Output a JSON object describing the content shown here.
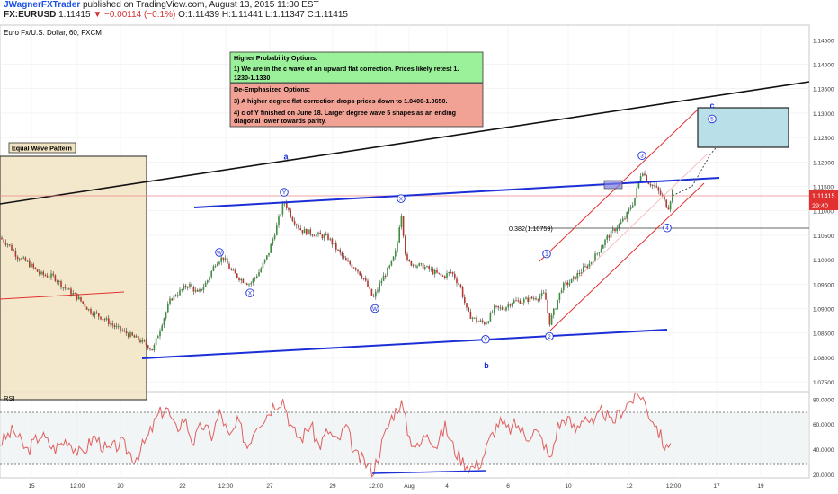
{
  "publisher": {
    "author": "JWagnerFXTrader",
    "published_text": " published on TradingView.com, August 13, 2015 11:30 EST"
  },
  "ticker": {
    "symbol": "FX:EURUSD",
    "price": "1.11415",
    "change_text": "▼ −0.00114 (−0.1%)",
    "ohlc_text": "O:1.11439 H:1.11441 L:1.11347 C:1.11415"
  },
  "chart_data": [
    {
      "type": "candlestick",
      "title": "Euro Fx/U.S. Dollar, 60, FXCM",
      "y_range": [
        1.073,
        1.148
      ],
      "y_ticks": [
        "1.14500",
        "1.14000",
        "1.13500",
        "1.13000",
        "1.12500",
        "1.12000",
        "1.11500",
        "1.11000",
        "1.10500",
        "1.10000",
        "1.09500",
        "1.09000",
        "1.08500",
        "1.08000",
        "1.07500"
      ],
      "x_tick_labels": [
        "15",
        "12:00",
        "20",
        "22",
        "12:00",
        "27",
        "29",
        "12:00",
        "Aug",
        "4",
        "6",
        "10",
        "12",
        "12:00",
        "17",
        "19"
      ],
      "last_price_label": "1.11415",
      "countdown_label": "29:40",
      "fib_label": "0.382(1.10759)",
      "fib_level": 1.10759,
      "close_path": [
        {
          "x": 0,
          "y": 1.1045
        },
        {
          "x": 10,
          "y": 1.103
        },
        {
          "x": 20,
          "y": 1.1005
        },
        {
          "x": 30,
          "y": 1.0995
        },
        {
          "x": 45,
          "y": 1.097
        },
        {
          "x": 60,
          "y": 1.0965
        },
        {
          "x": 70,
          "y": 1.0945
        },
        {
          "x": 85,
          "y": 1.0925
        },
        {
          "x": 100,
          "y": 1.0895
        },
        {
          "x": 115,
          "y": 1.088
        },
        {
          "x": 130,
          "y": 1.086
        },
        {
          "x": 145,
          "y": 1.0845
        },
        {
          "x": 160,
          "y": 1.083
        },
        {
          "x": 170,
          "y": 1.0815
        },
        {
          "x": 180,
          "y": 1.087
        },
        {
          "x": 190,
          "y": 1.092
        },
        {
          "x": 200,
          "y": 1.0935
        },
        {
          "x": 210,
          "y": 1.095
        },
        {
          "x": 220,
          "y": 1.093
        },
        {
          "x": 230,
          "y": 1.0955
        },
        {
          "x": 240,
          "y": 1.0995
        },
        {
          "x": 248,
          "y": 1.1005
        },
        {
          "x": 258,
          "y": 1.0975
        },
        {
          "x": 268,
          "y": 1.096
        },
        {
          "x": 278,
          "y": 1.095
        },
        {
          "x": 288,
          "y": 1.0975
        },
        {
          "x": 298,
          "y": 1.101
        },
        {
          "x": 308,
          "y": 1.107
        },
        {
          "x": 316,
          "y": 1.112
        },
        {
          "x": 325,
          "y": 1.1085
        },
        {
          "x": 335,
          "y": 1.106
        },
        {
          "x": 345,
          "y": 1.1055
        },
        {
          "x": 355,
          "y": 1.105
        },
        {
          "x": 365,
          "y": 1.1045
        },
        {
          "x": 375,
          "y": 1.102
        },
        {
          "x": 385,
          "y": 1.0995
        },
        {
          "x": 395,
          "y": 1.0985
        },
        {
          "x": 405,
          "y": 1.096
        },
        {
          "x": 415,
          "y": 1.092
        },
        {
          "x": 425,
          "y": 1.096
        },
        {
          "x": 435,
          "y": 1.099
        },
        {
          "x": 441,
          "y": 1.102
        },
        {
          "x": 446,
          "y": 1.11
        },
        {
          "x": 452,
          "y": 1.0995
        },
        {
          "x": 462,
          "y": 1.099
        },
        {
          "x": 472,
          "y": 1.0985
        },
        {
          "x": 482,
          "y": 1.0975
        },
        {
          "x": 492,
          "y": 1.0965
        },
        {
          "x": 502,
          "y": 1.0975
        },
        {
          "x": 512,
          "y": 1.0945
        },
        {
          "x": 520,
          "y": 1.089
        },
        {
          "x": 530,
          "y": 1.0875
        },
        {
          "x": 540,
          "y": 1.087
        },
        {
          "x": 550,
          "y": 1.09
        },
        {
          "x": 560,
          "y": 1.09
        },
        {
          "x": 570,
          "y": 1.0915
        },
        {
          "x": 580,
          "y": 1.0915
        },
        {
          "x": 590,
          "y": 1.092
        },
        {
          "x": 600,
          "y": 1.0925
        },
        {
          "x": 606,
          "y": 1.093
        },
        {
          "x": 611,
          "y": 1.087
        },
        {
          "x": 618,
          "y": 1.0905
        },
        {
          "x": 625,
          "y": 1.0945
        },
        {
          "x": 635,
          "y": 1.0955
        },
        {
          "x": 645,
          "y": 1.0975
        },
        {
          "x": 655,
          "y": 1.099
        },
        {
          "x": 665,
          "y": 1.1015
        },
        {
          "x": 675,
          "y": 1.1045
        },
        {
          "x": 685,
          "y": 1.1065
        },
        {
          "x": 695,
          "y": 1.1085
        },
        {
          "x": 705,
          "y": 1.112
        },
        {
          "x": 714,
          "y": 1.1185
        },
        {
          "x": 720,
          "y": 1.116
        },
        {
          "x": 728,
          "y": 1.115
        },
        {
          "x": 736,
          "y": 1.113
        },
        {
          "x": 743,
          "y": 1.1105
        },
        {
          "x": 748,
          "y": 1.1141
        }
      ],
      "annotations": {
        "wave_labels": [
          {
            "text": "a",
            "x": 318,
            "y": 1.1205
          },
          {
            "text": "b",
            "x": 541,
            "y": 1.0778
          },
          {
            "text": "c",
            "x": 792,
            "y": 1.131
          }
        ],
        "wave_circles": [
          {
            "text": "Y",
            "x": 316,
            "y": 1.1138
          },
          {
            "text": "W",
            "x": 244,
            "y": 1.1015
          },
          {
            "text": "X",
            "x": 278,
            "y": 1.0932
          },
          {
            "text": "X",
            "x": 446,
            "y": 1.1125
          },
          {
            "text": "W",
            "x": 417,
            "y": 1.09
          },
          {
            "text": "Y",
            "x": 540,
            "y": 1.0837
          },
          {
            "text": "1",
            "x": 608,
            "y": 1.1012
          },
          {
            "text": "2",
            "x": 611,
            "y": 1.0843
          },
          {
            "text": "3",
            "x": 714,
            "y": 1.1213
          },
          {
            "text": "4",
            "x": 742,
            "y": 1.1065
          },
          {
            "text": "5",
            "x": 792,
            "y": 1.1288
          }
        ],
        "equal_wave_label": "Equal Wave Pattern",
        "box_green": {
          "title": "Higher Probability Options:",
          "line1": "1) We are in the c wave of an upward flat correction.  Prices likely retest 1.",
          "line2": "1230-1.1330"
        },
        "box_red": {
          "title": "De-Emphasized Options:",
          "line1": "3)  A higher degree flat correction drops prices down to 1.0400-1.0650.",
          "line2": "4)   c of Y finished on June 18.  Larger degree wave 5 shapes as an ending",
          "line3": "diagonal lower towards parity."
        }
      }
    },
    {
      "type": "line",
      "title": "RSI",
      "y_range": [
        17,
        86
      ],
      "y_ticks": [
        "80.0000",
        "60.0000",
        "40.0000",
        "20.0000"
      ],
      "bands": [
        70,
        30
      ],
      "values": [
        {
          "x": 0,
          "y": 45
        },
        {
          "x": 15,
          "y": 55
        },
        {
          "x": 30,
          "y": 38
        },
        {
          "x": 45,
          "y": 52
        },
        {
          "x": 60,
          "y": 40
        },
        {
          "x": 75,
          "y": 48
        },
        {
          "x": 90,
          "y": 35
        },
        {
          "x": 105,
          "y": 50
        },
        {
          "x": 120,
          "y": 38
        },
        {
          "x": 135,
          "y": 45
        },
        {
          "x": 150,
          "y": 32
        },
        {
          "x": 165,
          "y": 50
        },
        {
          "x": 175,
          "y": 66
        },
        {
          "x": 185,
          "y": 74
        },
        {
          "x": 195,
          "y": 55
        },
        {
          "x": 205,
          "y": 65
        },
        {
          "x": 215,
          "y": 45
        },
        {
          "x": 225,
          "y": 60
        },
        {
          "x": 235,
          "y": 50
        },
        {
          "x": 245,
          "y": 70
        },
        {
          "x": 255,
          "y": 48
        },
        {
          "x": 265,
          "y": 62
        },
        {
          "x": 275,
          "y": 42
        },
        {
          "x": 285,
          "y": 60
        },
        {
          "x": 295,
          "y": 66
        },
        {
          "x": 305,
          "y": 76
        },
        {
          "x": 315,
          "y": 80
        },
        {
          "x": 325,
          "y": 55
        },
        {
          "x": 335,
          "y": 48
        },
        {
          "x": 345,
          "y": 60
        },
        {
          "x": 355,
          "y": 42
        },
        {
          "x": 365,
          "y": 55
        },
        {
          "x": 375,
          "y": 45
        },
        {
          "x": 385,
          "y": 58
        },
        {
          "x": 395,
          "y": 35
        },
        {
          "x": 405,
          "y": 30
        },
        {
          "x": 415,
          "y": 22
        },
        {
          "x": 425,
          "y": 45
        },
        {
          "x": 435,
          "y": 65
        },
        {
          "x": 446,
          "y": 78
        },
        {
          "x": 455,
          "y": 50
        },
        {
          "x": 465,
          "y": 40
        },
        {
          "x": 475,
          "y": 55
        },
        {
          "x": 485,
          "y": 42
        },
        {
          "x": 495,
          "y": 58
        },
        {
          "x": 505,
          "y": 40
        },
        {
          "x": 515,
          "y": 30
        },
        {
          "x": 525,
          "y": 25
        },
        {
          "x": 535,
          "y": 30
        },
        {
          "x": 545,
          "y": 48
        },
        {
          "x": 555,
          "y": 62
        },
        {
          "x": 565,
          "y": 55
        },
        {
          "x": 575,
          "y": 60
        },
        {
          "x": 585,
          "y": 50
        },
        {
          "x": 595,
          "y": 55
        },
        {
          "x": 605,
          "y": 45
        },
        {
          "x": 612,
          "y": 30
        },
        {
          "x": 620,
          "y": 58
        },
        {
          "x": 630,
          "y": 65
        },
        {
          "x": 640,
          "y": 55
        },
        {
          "x": 650,
          "y": 68
        },
        {
          "x": 660,
          "y": 58
        },
        {
          "x": 670,
          "y": 72
        },
        {
          "x": 680,
          "y": 60
        },
        {
          "x": 690,
          "y": 70
        },
        {
          "x": 700,
          "y": 78
        },
        {
          "x": 708,
          "y": 82
        },
        {
          "x": 714,
          "y": 84
        },
        {
          "x": 720,
          "y": 70
        },
        {
          "x": 728,
          "y": 62
        },
        {
          "x": 736,
          "y": 48
        },
        {
          "x": 742,
          "y": 38
        },
        {
          "x": 748,
          "y": 56
        }
      ]
    }
  ],
  "colors": {
    "bull": "#3c8f3c",
    "bear": "#b3392f",
    "trend_blue": "#1c2fd6",
    "channel_red": "#e03030",
    "rsi_line": "#e06060",
    "green_box": "#9bf09a",
    "red_box": "#f1a295",
    "target_box": "#b9dfe8",
    "equal_box": "#f1e4c2"
  }
}
